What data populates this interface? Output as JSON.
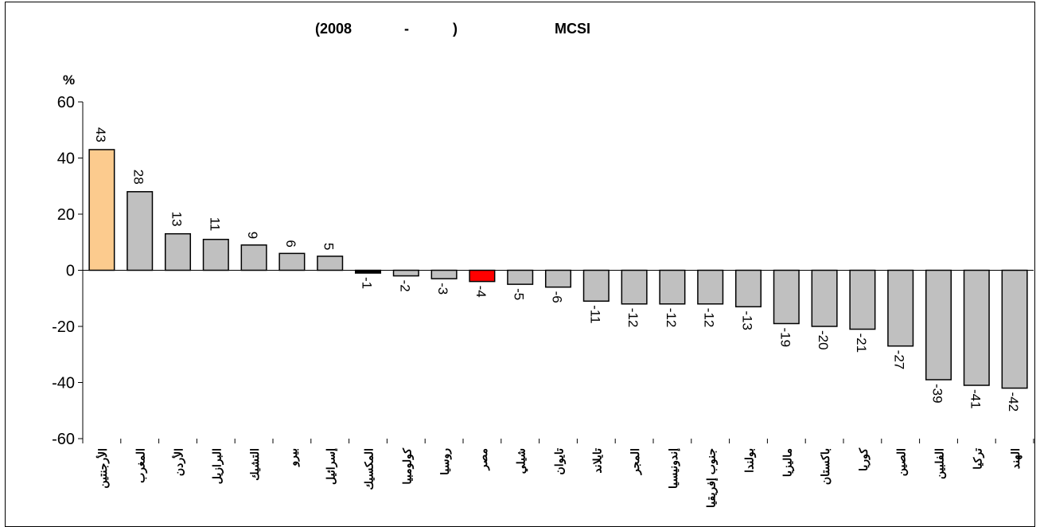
{
  "chart_data": {
    "type": "bar",
    "title_parts": [
      "(2008",
      "-",
      ")",
      "MCSI"
    ],
    "ylabel": "%",
    "ylim": [
      -60,
      60
    ],
    "yticks": [
      60,
      40,
      20,
      0,
      -20,
      -40,
      -60
    ],
    "grid": false,
    "legend": "none",
    "categories": [
      "الأرجنتين",
      "المغرب",
      "الأردن",
      "البرازيل",
      "التشيك",
      "بيرو",
      "إسرائيل",
      "المكسيك",
      "كولومبيا",
      "روسيا",
      "مصر",
      "شيلي",
      "تايوان",
      "تايلاند",
      "المجر",
      "إندونيسيا",
      "جنوب إفريقيا",
      "بولندا",
      "ماليزيا",
      "باكستان",
      "كوريا",
      "الصين",
      "الفلبين",
      "تركيا",
      "الهند"
    ],
    "values": [
      43,
      28,
      13,
      11,
      9,
      6,
      5,
      -1,
      -2,
      -3,
      -4,
      -5,
      -6,
      -11,
      -12,
      -12,
      -12,
      -13,
      -19,
      -20,
      -21,
      -27,
      -39,
      -41,
      -42
    ],
    "colors": {
      "default": "#c0c0c0",
      "highlight_max": "#fccb8e",
      "highlight_egypt": "#ff0000",
      "mexico": "#000000"
    }
  }
}
